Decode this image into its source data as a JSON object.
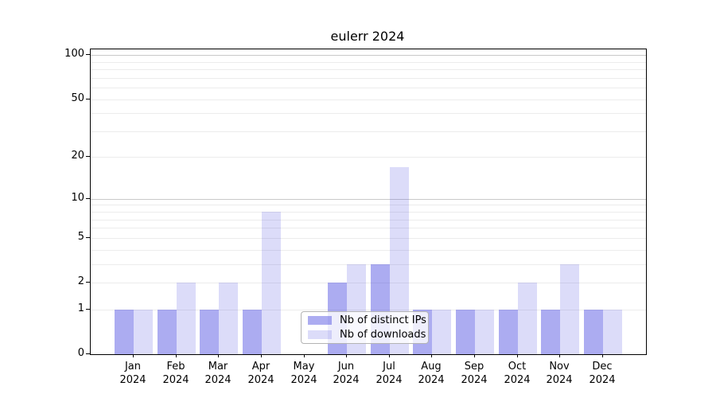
{
  "chart_data": {
    "type": "bar",
    "title": "eulerr 2024",
    "categories": [
      "Jan 2024",
      "Feb 2024",
      "Mar 2024",
      "Apr 2024",
      "May 2024",
      "Jun 2024",
      "Jul 2024",
      "Aug 2024",
      "Sep 2024",
      "Oct 2024",
      "Nov 2024",
      "Dec 2024"
    ],
    "series": [
      {
        "name": "Nb of distinct IPs",
        "color": "rgba(70,70,225,0.45)",
        "values": [
          1,
          1,
          1,
          1,
          0,
          2,
          3,
          1,
          1,
          1,
          1,
          1
        ]
      },
      {
        "name": "Nb of downloads",
        "color": "rgba(70,70,225,0.19)",
        "values": [
          1,
          2,
          2,
          8,
          0,
          3,
          17,
          1,
          1,
          2,
          3,
          1
        ]
      }
    ],
    "xlabel": "",
    "ylabel": "",
    "yscale": "log1p",
    "ylim": [
      0,
      110
    ],
    "yticks": [
      0,
      1,
      2,
      5,
      10,
      20,
      50,
      100
    ],
    "gridlines": [
      1,
      2,
      3,
      4,
      5,
      6,
      7,
      8,
      9,
      10,
      20,
      30,
      40,
      50,
      60,
      70,
      80,
      90,
      100
    ],
    "grid": true,
    "legend_position": "lower-center-inside"
  },
  "colors": {
    "background": "#ffffff",
    "axis_spine": "#000000",
    "grid_minor": "#ececec",
    "grid_decade": "#c9c9c9",
    "legend_border": "#b3b3b3",
    "legend_background": "rgba(255,255,255,0.8)",
    "text": "#000000"
  }
}
